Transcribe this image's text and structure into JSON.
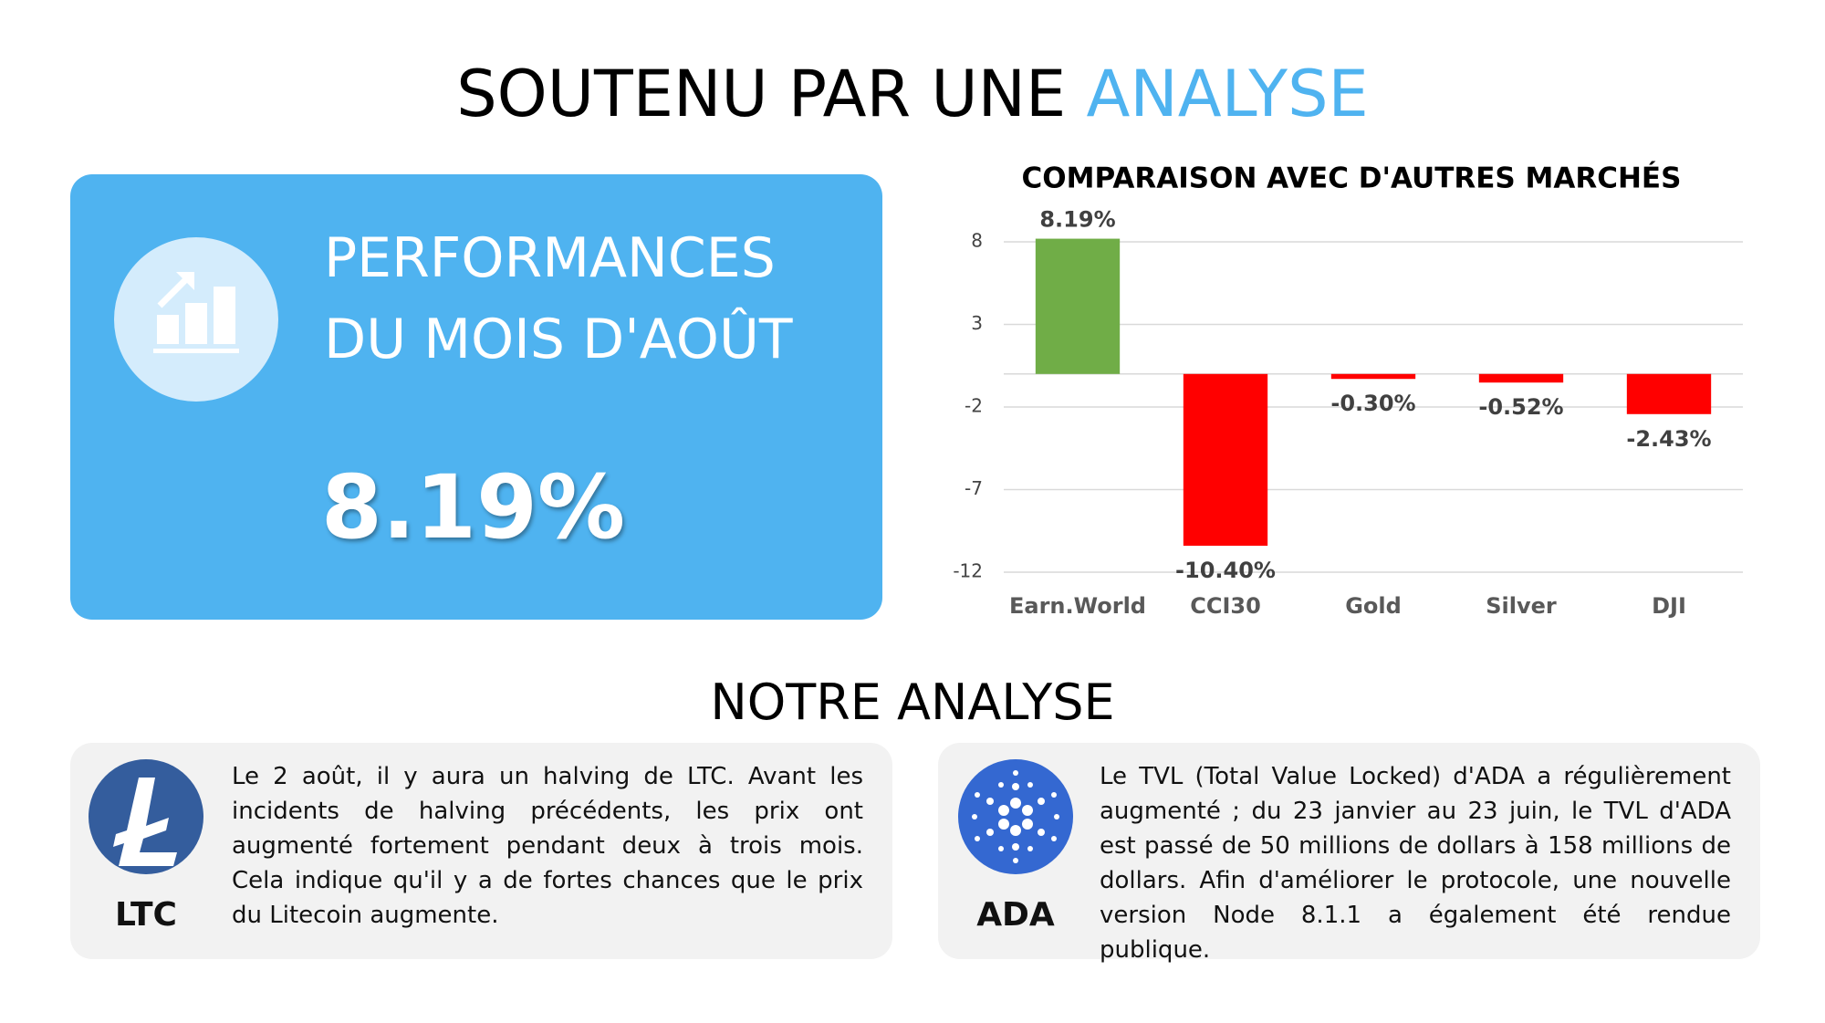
{
  "header": {
    "title": "SOUTENU PAR UNE",
    "title_highlight": "ANALYSE"
  },
  "performance": {
    "label_line1": "PERFORMANCES",
    "label_line2": "DU MOIS D'AOÛT",
    "value": "8.19%"
  },
  "chart_data": {
    "type": "bar",
    "title": "COMPARAISON AVEC D'AUTRES MARCHÉS",
    "categories": [
      "Earn.World",
      "CCI30",
      "Gold",
      "Silver",
      "DJI"
    ],
    "values": [
      8.19,
      -10.4,
      -0.3,
      -0.52,
      -2.43
    ],
    "value_labels": [
      "8.19%",
      "-10.40%",
      "-0.30%",
      "-0.52%",
      "-2.43%"
    ],
    "colors": [
      "#70ad47",
      "#ff0000",
      "#ff0000",
      "#ff0000",
      "#ff0000"
    ],
    "ylim": [
      -12,
      8
    ],
    "yticks": [
      -12,
      -7,
      -2,
      3,
      8
    ],
    "grid": true
  },
  "analysis": {
    "title": "NOTRE ANALYSE",
    "cards": [
      {
        "name": "LTC",
        "text": "Le 2 août, il y aura un halving de LTC. Avant les incidents de halving précédents, les prix ont augmenté fortement pendant deux à trois mois. Cela indique qu'il y a de fortes chances que le prix du Litecoin augmente."
      },
      {
        "name": "ADA",
        "text": "Le TVL (Total Value Locked) d'ADA a régulièrement augmenté ; du 23 janvier au 23 juin, le TVL d'ADA est passé de 50 millions de dollars à 158 millions de dollars. Afin d'améliorer le protocole, une nouvelle version Node 8.1.1 a également été rendue publique."
      }
    ]
  }
}
